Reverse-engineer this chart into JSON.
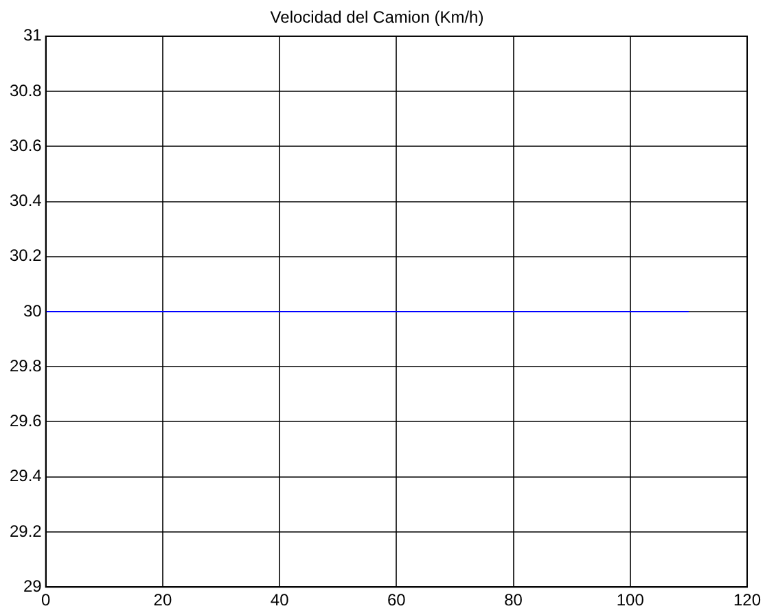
{
  "chart_data": {
    "type": "line",
    "title": "Velocidad del Camion (Km/h)",
    "x": [
      0,
      110
    ],
    "series": [
      {
        "color": "#0000ff",
        "values": [
          30,
          30
        ]
      }
    ],
    "xlim": [
      0,
      120
    ],
    "xticks": [
      0,
      20,
      40,
      60,
      80,
      100,
      120
    ],
    "ylim": [
      29,
      31
    ],
    "yticks": [
      29,
      29.2,
      29.4,
      29.6,
      29.8,
      30,
      30.2,
      30.4,
      30.6,
      30.8,
      31
    ],
    "grid": true,
    "legend": false,
    "marker": "none",
    "line_style": "solid"
  }
}
